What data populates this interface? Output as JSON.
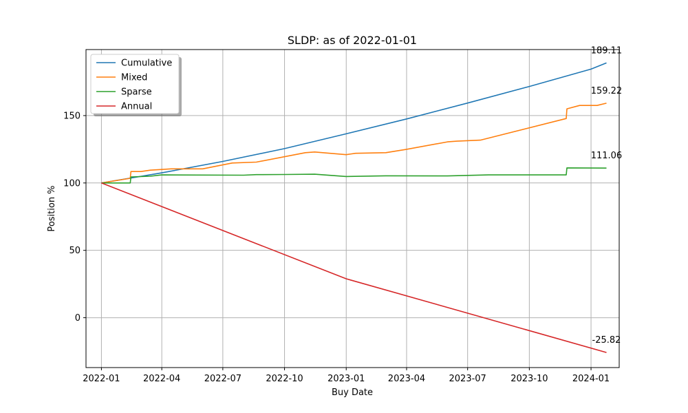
{
  "chart_data": {
    "type": "line",
    "title": "SLDP: as of 2022-01-01",
    "xlabel": "Buy Date",
    "ylabel": "Position %",
    "x_ticks": [
      "2022-01",
      "2022-04",
      "2022-07",
      "2022-10",
      "2023-01",
      "2023-04",
      "2023-07",
      "2023-10",
      "2024-01"
    ],
    "y_ticks": [
      0,
      50,
      100,
      150
    ],
    "xlim": [
      "2021-12-09",
      "2024-02-12"
    ],
    "ylim": [
      -37,
      199
    ],
    "grid": true,
    "legend_position": "upper-left",
    "series": [
      {
        "name": "Cumulative",
        "color": "#1f77b4",
        "end_label": "189.11",
        "points": [
          [
            "2022-01-01",
            100
          ],
          [
            "2022-04-01",
            107.5
          ],
          [
            "2022-07-01",
            116
          ],
          [
            "2022-10-01",
            125.5
          ],
          [
            "2023-01-01",
            136.5
          ],
          [
            "2023-04-01",
            147.5
          ],
          [
            "2023-07-01",
            159.3
          ],
          [
            "2023-10-01",
            171.6
          ],
          [
            "2024-01-01",
            184.5
          ],
          [
            "2024-01-24",
            189.11
          ]
        ]
      },
      {
        "name": "Mixed",
        "color": "#ff7f0e",
        "end_label": "159.22",
        "points": [
          [
            "2022-01-01",
            100
          ],
          [
            "2022-02-13",
            103.5
          ],
          [
            "2022-02-14",
            108.5
          ],
          [
            "2022-03-01",
            108.5
          ],
          [
            "2022-03-15",
            109.5
          ],
          [
            "2022-04-01",
            110
          ],
          [
            "2022-04-15",
            110.5
          ],
          [
            "2022-06-01",
            110.5
          ],
          [
            "2022-07-15",
            114.8
          ],
          [
            "2022-08-20",
            115.5
          ],
          [
            "2022-11-01",
            122.5
          ],
          [
            "2022-11-15",
            123
          ],
          [
            "2023-01-01",
            121
          ],
          [
            "2023-01-15",
            122
          ],
          [
            "2023-03-01",
            122.5
          ],
          [
            "2023-04-01",
            125
          ],
          [
            "2023-06-01",
            130.5
          ],
          [
            "2023-06-15",
            131
          ],
          [
            "2023-07-20",
            131.8
          ],
          [
            "2023-11-25",
            147.8
          ],
          [
            "2023-11-26",
            155
          ],
          [
            "2023-12-15",
            157.5
          ],
          [
            "2024-01-10",
            157.5
          ],
          [
            "2024-01-24",
            159.22
          ]
        ]
      },
      {
        "name": "Sparse",
        "color": "#2ca02c",
        "end_label": "111.06",
        "points": [
          [
            "2022-01-01",
            100
          ],
          [
            "2022-02-13",
            100
          ],
          [
            "2022-02-14",
            104.5
          ],
          [
            "2022-03-15",
            105
          ],
          [
            "2022-04-01",
            106
          ],
          [
            "2022-08-01",
            105.8
          ],
          [
            "2022-08-20",
            106.2
          ],
          [
            "2022-10-01",
            106.3
          ],
          [
            "2022-11-15",
            106.5
          ],
          [
            "2023-01-01",
            104.8
          ],
          [
            "2023-03-01",
            105.3
          ],
          [
            "2023-06-01",
            105.2
          ],
          [
            "2023-08-01",
            106
          ],
          [
            "2023-11-25",
            106
          ],
          [
            "2023-11-26",
            111.2
          ],
          [
            "2024-01-24",
            111.06
          ]
        ]
      },
      {
        "name": "Annual",
        "color": "#d62728",
        "end_label": "-25.82",
        "points": [
          [
            "2022-01-01",
            100
          ],
          [
            "2023-01-01",
            28.9
          ],
          [
            "2024-01-24",
            -25.82
          ]
        ]
      }
    ]
  }
}
